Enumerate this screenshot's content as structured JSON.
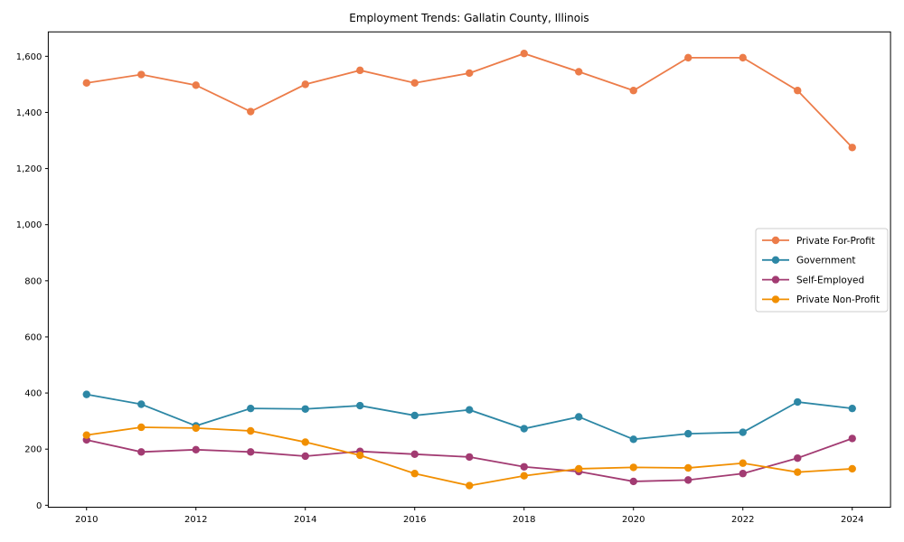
{
  "chart_data": {
    "type": "line",
    "title": "Employment Trends: Gallatin County, Illinois",
    "xlabel": "",
    "ylabel": "",
    "grid": false,
    "legend_position": "center right",
    "xlim": [
      2009.3,
      2024.7
    ],
    "ylim": [
      -7,
      1687
    ],
    "x": [
      2010,
      2011,
      2012,
      2013,
      2014,
      2015,
      2016,
      2017,
      2018,
      2019,
      2020,
      2021,
      2022,
      2023,
      2024
    ],
    "x_ticks": [
      2010,
      2012,
      2014,
      2016,
      2018,
      2020,
      2022,
      2024
    ],
    "x_tick_labels": [
      "2010",
      "2012",
      "2014",
      "2016",
      "2018",
      "2020",
      "2022",
      "2024"
    ],
    "y_ticks": [
      0,
      200,
      400,
      600,
      800,
      1000,
      1200,
      1400,
      1600
    ],
    "y_tick_labels": [
      "0",
      "200",
      "400",
      "600",
      "800",
      "1,000",
      "1,200",
      "1,400",
      "1,600"
    ],
    "series": [
      {
        "name": "Private For-Profit",
        "color": "#EC7C49",
        "values": [
          1505,
          1535,
          1497,
          1403,
          1500,
          1550,
          1505,
          1540,
          1610,
          1545,
          1478,
          1595,
          1595,
          1478,
          1275
        ]
      },
      {
        "name": "Government",
        "color": "#2D87A5",
        "values": [
          395,
          360,
          283,
          345,
          343,
          355,
          320,
          340,
          273,
          315,
          235,
          255,
          260,
          368,
          345
        ]
      },
      {
        "name": "Self-Employed",
        "color": "#A23B72",
        "values": [
          233,
          190,
          198,
          190,
          175,
          192,
          182,
          172,
          137,
          120,
          85,
          90,
          113,
          168,
          238
        ]
      },
      {
        "name": "Private Non-Profit",
        "color": "#F18F01",
        "values": [
          250,
          278,
          275,
          265,
          225,
          178,
          113,
          70,
          105,
          130,
          135,
          133,
          150,
          118,
          130
        ]
      }
    ],
    "text_color": "#000000",
    "axis_color": "#000000",
    "legend_border_color": "#cccccc",
    "background_color": "#ffffff"
  }
}
